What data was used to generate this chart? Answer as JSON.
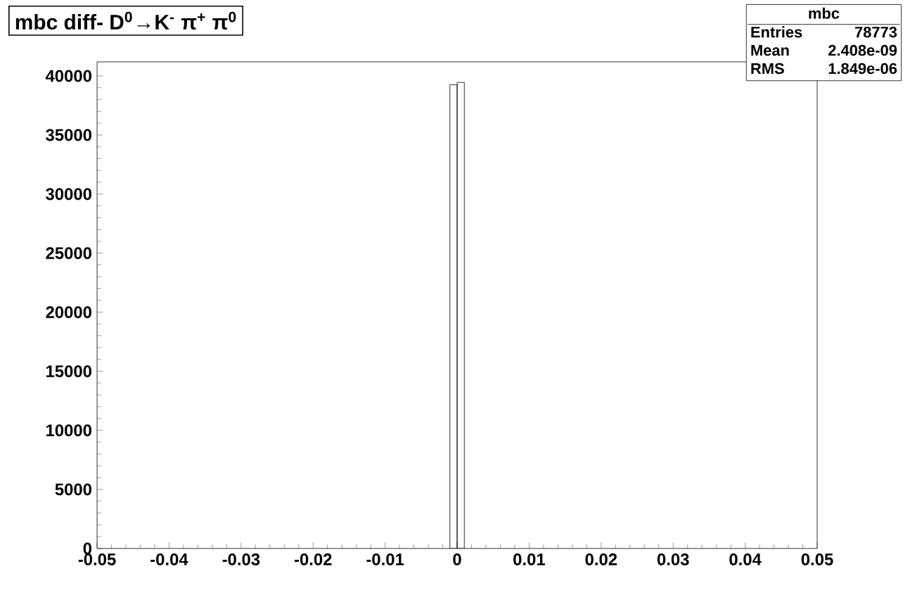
{
  "chart_data": {
    "type": "histogram",
    "title": "mbc diff- D$^{0}$→K$^{-}$ π$^{+}$ π$^{0}$",
    "bins": [
      -0.001,
      0,
      0.001
    ],
    "values": [
      39250,
      39450
    ],
    "color": "#000000",
    "xlim": [
      -0.05,
      0.05
    ],
    "ylim": [
      0,
      41190
    ],
    "xticks": [
      -0.05,
      -0.04,
      -0.03,
      -0.02,
      -0.01,
      0,
      0.01,
      0.02,
      0.03,
      0.04,
      0.05
    ],
    "yticks": [
      0,
      5000,
      10000,
      15000,
      20000,
      25000,
      30000,
      35000,
      40000
    ],
    "annotations": [
      "mbc",
      "Entries",
      "78773",
      "Mean",
      "2.408e-09",
      "RMS",
      "1.849e-06"
    ]
  }
}
